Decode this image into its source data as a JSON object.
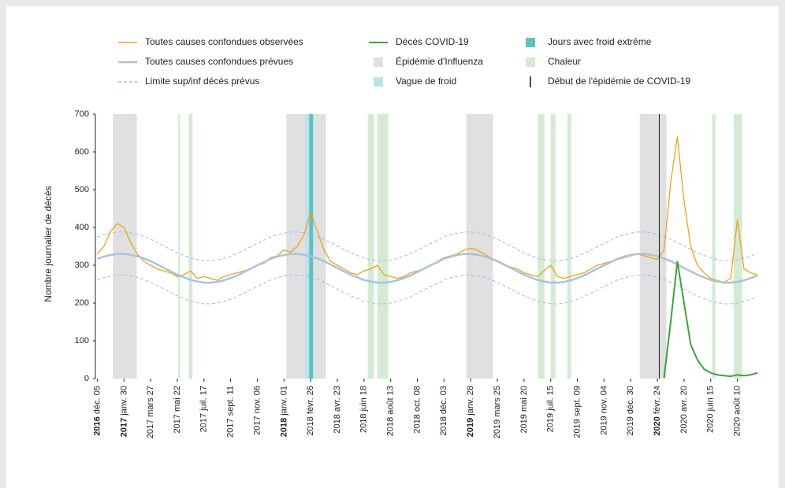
{
  "chart_data": {
    "type": "line",
    "y_label": "Nombre journalier de décès",
    "x": [
      "2016-12-05",
      "2016-12-19",
      "2017-01-02",
      "2017-01-16",
      "2017-01-30",
      "2017-02-13",
      "2017-02-27",
      "2017-03-13",
      "2017-03-27",
      "2017-04-10",
      "2017-04-24",
      "2017-05-08",
      "2017-05-22",
      "2017-06-05",
      "2017-06-19",
      "2017-07-03",
      "2017-07-17",
      "2017-07-31",
      "2017-08-14",
      "2017-08-28",
      "2017-09-11",
      "2017-09-25",
      "2017-10-09",
      "2017-10-23",
      "2017-11-06",
      "2017-11-20",
      "2017-12-04",
      "2017-12-18",
      "2018-01-01",
      "2018-01-15",
      "2018-01-29",
      "2018-02-12",
      "2018-02-26",
      "2018-03-12",
      "2018-03-26",
      "2018-04-09",
      "2018-04-23",
      "2018-05-07",
      "2018-05-21",
      "2018-06-04",
      "2018-06-18",
      "2018-07-02",
      "2018-07-16",
      "2018-07-30",
      "2018-08-13",
      "2018-08-27",
      "2018-09-10",
      "2018-09-24",
      "2018-10-08",
      "2018-10-22",
      "2018-11-05",
      "2018-11-19",
      "2018-12-03",
      "2018-12-17",
      "2018-12-31",
      "2019-01-14",
      "2019-01-28",
      "2019-02-11",
      "2019-02-25",
      "2019-03-11",
      "2019-03-25",
      "2019-04-08",
      "2019-04-22",
      "2019-05-06",
      "2019-05-20",
      "2019-06-03",
      "2019-06-17",
      "2019-07-01",
      "2019-07-15",
      "2019-07-29",
      "2019-08-12",
      "2019-08-26",
      "2019-09-09",
      "2019-09-23",
      "2019-10-07",
      "2019-10-21",
      "2019-11-04",
      "2019-11-18",
      "2019-12-02",
      "2019-12-16",
      "2019-12-30",
      "2020-01-13",
      "2020-01-27",
      "2020-02-10",
      "2020-02-24",
      "2020-03-09",
      "2020-03-23",
      "2020-04-06",
      "2020-04-20",
      "2020-05-04",
      "2020-05-18",
      "2020-06-01",
      "2020-06-15",
      "2020-06-29",
      "2020-07-13",
      "2020-07-27",
      "2020-08-10",
      "2020-08-24",
      "2020-09-07",
      "2020-09-21"
    ],
    "xlim": [
      "2016-12-01",
      "2020-10-01"
    ],
    "xticks": [
      {
        "value": "2016-12-05",
        "label": "2016 déc. 05",
        "bold_year": true
      },
      {
        "value": "2017-01-30",
        "label": "2017 janv. 30",
        "bold_year": true
      },
      {
        "value": "2017-03-27",
        "label": "2017 mars 27"
      },
      {
        "value": "2017-05-22",
        "label": "2017 mai 22"
      },
      {
        "value": "2017-07-17",
        "label": "2017 juil. 17"
      },
      {
        "value": "2017-09-11",
        "label": "2017 sept. 11"
      },
      {
        "value": "2017-11-06",
        "label": "2017 nov. 06"
      },
      {
        "value": "2018-01-01",
        "label": "2018 janv. 01",
        "bold_year": true
      },
      {
        "value": "2018-02-26",
        "label": "2018 févr. 26"
      },
      {
        "value": "2018-04-23",
        "label": "2018 avr. 23"
      },
      {
        "value": "2018-06-18",
        "label": "2018 juin 18"
      },
      {
        "value": "2018-08-13",
        "label": "2018 août 13"
      },
      {
        "value": "2018-10-08",
        "label": "2018 oct. 08"
      },
      {
        "value": "2018-12-03",
        "label": "2018 déc. 03"
      },
      {
        "value": "2019-01-28",
        "label": "2019 janv. 28",
        "bold_year": true
      },
      {
        "value": "2019-03-25",
        "label": "2019 mars 25"
      },
      {
        "value": "2019-05-20",
        "label": "2019 mai 20"
      },
      {
        "value": "2019-07-15",
        "label": "2019 juil. 15"
      },
      {
        "value": "2019-09-09",
        "label": "2019 sept. 09"
      },
      {
        "value": "2019-11-04",
        "label": "2019 nov. 04"
      },
      {
        "value": "2019-12-30",
        "label": "2019 déc. 30"
      },
      {
        "value": "2020-02-24",
        "label": "2020 févr. 24",
        "bold_year": true
      },
      {
        "value": "2020-04-20",
        "label": "2020 avr. 20"
      },
      {
        "value": "2020-06-15",
        "label": "2020 juin 15"
      },
      {
        "value": "2020-08-10",
        "label": "2020 août 10"
      }
    ],
    "ylim": [
      0,
      700
    ],
    "yticks": [
      0,
      100,
      200,
      300,
      400,
      500,
      600,
      700
    ],
    "grid": false,
    "series": [
      {
        "name": "Toutes causes confondues observées",
        "color": "#f5a01a",
        "width": 1.3,
        "values": [
          330,
          350,
          390,
          410,
          400,
          360,
          330,
          310,
          300,
          290,
          285,
          280,
          270,
          275,
          285,
          265,
          270,
          265,
          260,
          270,
          275,
          280,
          285,
          290,
          300,
          305,
          320,
          325,
          340,
          335,
          350,
          380,
          440,
          390,
          340,
          310,
          300,
          290,
          280,
          275,
          285,
          290,
          300,
          275,
          270,
          265,
          270,
          280,
          285,
          290,
          300,
          310,
          320,
          325,
          330,
          340,
          345,
          340,
          330,
          320,
          310,
          300,
          295,
          290,
          280,
          275,
          270,
          285,
          300,
          270,
          265,
          270,
          275,
          280,
          290,
          300,
          305,
          310,
          315,
          320,
          325,
          330,
          325,
          320,
          315,
          340,
          520,
          640,
          470,
          350,
          300,
          280,
          265,
          260,
          255,
          265,
          420,
          290,
          280,
          275
        ]
      },
      {
        "name": "Toutes causes confondues prévues",
        "color": "#a9c3df",
        "width": 2.5,
        "values": [
          317,
          323,
          327,
          330,
          330,
          328,
          324,
          318,
          311,
          302,
          293,
          284,
          275,
          268,
          261,
          257,
          254,
          254,
          256,
          260,
          266,
          273,
          282,
          291,
          300,
          308,
          317,
          323,
          327,
          330,
          330,
          328,
          324,
          318,
          311,
          302,
          293,
          284,
          275,
          268,
          261,
          257,
          254,
          254,
          256,
          260,
          266,
          273,
          282,
          291,
          300,
          308,
          317,
          323,
          327,
          330,
          330,
          328,
          324,
          318,
          311,
          302,
          293,
          284,
          275,
          268,
          261,
          257,
          254,
          254,
          256,
          260,
          266,
          273,
          282,
          291,
          300,
          308,
          317,
          323,
          327,
          330,
          330,
          328,
          324,
          318,
          311,
          302,
          293,
          284,
          275,
          268,
          261,
          257,
          254,
          254,
          256,
          260,
          266,
          273
        ]
      },
      {
        "name": "Limite sup/inf décès prévus",
        "color": "#a6b6e6",
        "width": 1,
        "dashed": true,
        "upper": [
          375,
          381,
          385,
          388,
          388,
          386,
          382,
          376,
          369,
          360,
          351,
          342,
          333,
          326,
          319,
          315,
          312,
          312,
          314,
          318,
          324,
          331,
          340,
          349,
          358,
          366,
          375,
          381,
          385,
          388,
          388,
          386,
          382,
          376,
          369,
          360,
          351,
          342,
          333,
          326,
          319,
          315,
          312,
          312,
          314,
          318,
          324,
          331,
          340,
          349,
          358,
          366,
          375,
          381,
          385,
          388,
          388,
          386,
          382,
          376,
          369,
          360,
          351,
          342,
          333,
          326,
          319,
          315,
          312,
          312,
          314,
          318,
          324,
          331,
          340,
          349,
          358,
          366,
          375,
          381,
          385,
          388,
          388,
          386,
          382,
          376,
          369,
          360,
          351,
          342,
          333,
          326,
          319,
          315,
          312,
          312,
          314,
          318,
          324,
          331
        ],
        "lower": [
          261,
          267,
          271,
          274,
          274,
          272,
          268,
          262,
          255,
          246,
          237,
          228,
          219,
          212,
          205,
          201,
          198,
          198,
          200,
          204,
          210,
          217,
          226,
          235,
          244,
          252,
          261,
          267,
          271,
          274,
          274,
          272,
          268,
          262,
          255,
          246,
          237,
          228,
          219,
          212,
          205,
          201,
          198,
          198,
          200,
          204,
          210,
          217,
          226,
          235,
          244,
          252,
          261,
          267,
          271,
          274,
          274,
          272,
          268,
          262,
          255,
          246,
          237,
          228,
          219,
          212,
          205,
          201,
          198,
          198,
          200,
          204,
          210,
          217,
          226,
          235,
          244,
          252,
          261,
          267,
          271,
          274,
          274,
          272,
          268,
          262,
          255,
          246,
          237,
          228,
          219,
          212,
          205,
          201,
          198,
          198,
          200,
          204,
          210,
          217
        ]
      },
      {
        "name": "Décès COVID-19",
        "color": "#3aa63a",
        "width": 2,
        "values": [
          null,
          null,
          null,
          null,
          null,
          null,
          null,
          null,
          null,
          null,
          null,
          null,
          null,
          null,
          null,
          null,
          null,
          null,
          null,
          null,
          null,
          null,
          null,
          null,
          null,
          null,
          null,
          null,
          null,
          null,
          null,
          null,
          null,
          null,
          null,
          null,
          null,
          null,
          null,
          null,
          null,
          null,
          null,
          null,
          null,
          null,
          null,
          null,
          null,
          null,
          null,
          null,
          null,
          null,
          null,
          null,
          null,
          null,
          null,
          null,
          null,
          null,
          null,
          null,
          null,
          null,
          null,
          null,
          null,
          null,
          null,
          null,
          null,
          null,
          null,
          null,
          null,
          null,
          null,
          null,
          null,
          null,
          null,
          null,
          null,
          2,
          150,
          310,
          200,
          90,
          50,
          25,
          15,
          10,
          8,
          6,
          10,
          8,
          10,
          15
        ]
      }
    ],
    "bands": [
      {
        "name": "Épidémie d'Influenza",
        "color": "#e0e0e0",
        "ranges": [
          [
            "2017-01-07",
            "2017-02-26"
          ],
          [
            "2018-01-06",
            "2018-03-30"
          ],
          [
            "2019-01-19",
            "2019-03-16"
          ],
          [
            "2020-01-18",
            "2020-03-14"
          ]
        ]
      },
      {
        "name": "Vague de froid",
        "color": "#bfe2ec",
        "ranges": [
          [
            "2018-02-15",
            "2018-03-05"
          ]
        ]
      },
      {
        "name": "Jours avec froid extrême",
        "color": "#5bc3be",
        "ranges": [
          [
            "2018-02-23",
            "2018-03-03"
          ]
        ]
      },
      {
        "name": "Chaleur",
        "color": "#d3ebd3",
        "ranges": [
          [
            "2017-05-24",
            "2017-05-28"
          ],
          [
            "2017-06-15",
            "2017-06-23"
          ],
          [
            "2018-06-26",
            "2018-07-09"
          ],
          [
            "2018-07-16",
            "2018-08-08"
          ],
          [
            "2019-06-18",
            "2019-07-02"
          ],
          [
            "2019-07-15",
            "2019-07-25"
          ],
          [
            "2019-08-19",
            "2019-08-27"
          ],
          [
            "2020-06-18",
            "2020-06-25"
          ],
          [
            "2020-08-02",
            "2020-08-20"
          ]
        ]
      }
    ],
    "event": {
      "name": "Début de l'épidémie de COVID-19",
      "date": "2020-02-28",
      "color": "#111111"
    }
  }
}
